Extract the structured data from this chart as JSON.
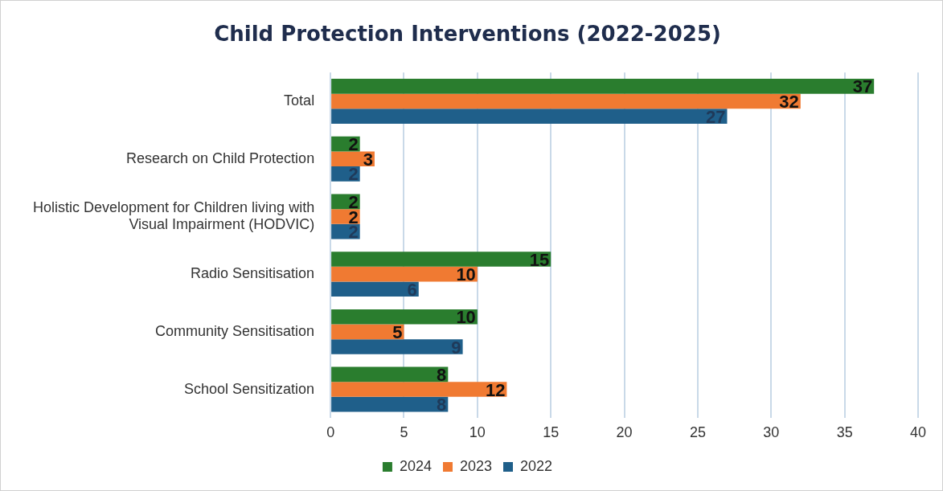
{
  "chart_data": {
    "type": "bar",
    "orientation": "horizontal",
    "title": "Child Protection Interventions (2022-2025)",
    "categories": [
      "Total",
      "Research on Child Protection",
      "Holistic Development for Children living with Visual Impairment (HODVIC)",
      "Radio Sensitisation",
      "Community Sensitisation",
      "School Sensitization"
    ],
    "series": [
      {
        "name": "2024",
        "color": "#2a7d2e",
        "values": [
          37,
          2,
          2,
          15,
          10,
          8
        ]
      },
      {
        "name": "2023",
        "color": "#f07a32",
        "values": [
          32,
          3,
          2,
          10,
          5,
          12
        ]
      },
      {
        "name": "2022",
        "color": "#1f5f8a",
        "values": [
          27,
          2,
          2,
          6,
          9,
          8
        ]
      }
    ],
    "xlim": [
      0,
      40
    ],
    "xticks": [
      0,
      5,
      10,
      15,
      20,
      25,
      30,
      35,
      40
    ],
    "grid": "x",
    "legend": "bottom",
    "data_labels": true
  }
}
